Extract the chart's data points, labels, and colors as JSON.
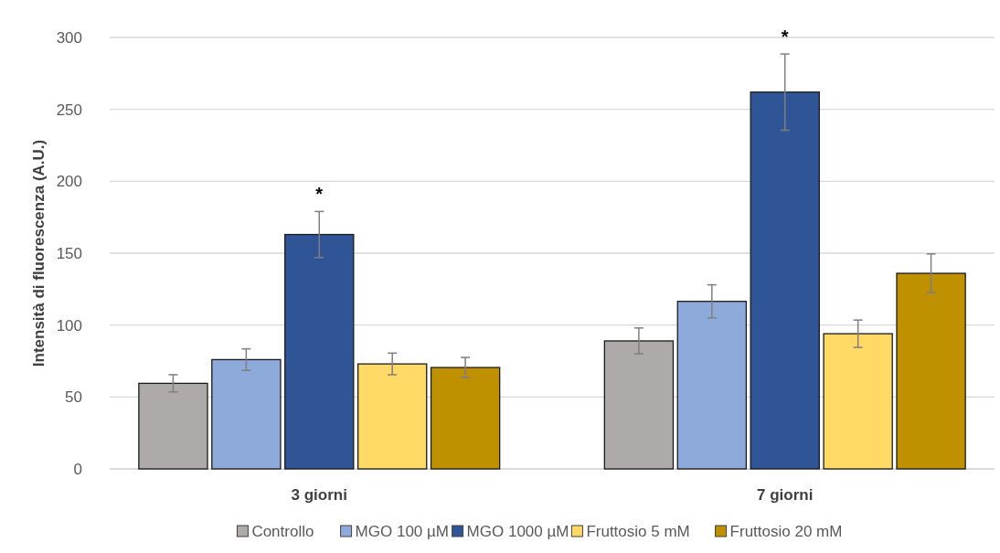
{
  "chart_data": {
    "type": "bar",
    "ylabel": "Intensità di fluorescenza (A.U.)",
    "categories": [
      "3 giorni",
      "7 giorni"
    ],
    "series": [
      {
        "name": "Controllo",
        "color": "#aeaaaa",
        "values": [
          59.5,
          89
        ],
        "errors": [
          6,
          9
        ]
      },
      {
        "name": "MGO 100 µM",
        "color": "#8eaadb",
        "values": [
          76,
          116.5
        ],
        "errors": [
          7.5,
          11.5
        ]
      },
      {
        "name": "MGO 1000 µM",
        "color": "#2f5597",
        "values": [
          163,
          262
        ],
        "errors": [
          16,
          26.5
        ]
      },
      {
        "name": "Fruttosio 5 mM",
        "color": "#ffd966",
        "values": [
          73,
          94
        ],
        "errors": [
          7.5,
          9.5
        ]
      },
      {
        "name": "Fruttosio 20 mM",
        "color": "#bf9000",
        "values": [
          70.5,
          136
        ],
        "errors": [
          7,
          13.5
        ]
      }
    ],
    "ylim": [
      0,
      300
    ],
    "yticks": [
      0,
      50,
      100,
      150,
      200,
      250,
      300
    ],
    "grid": "y",
    "legend": "bottom",
    "annotations": [
      "*",
      "*"
    ]
  }
}
